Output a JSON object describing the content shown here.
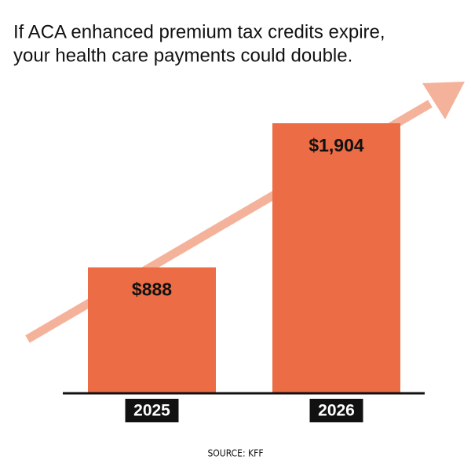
{
  "chart_data": {
    "type": "bar",
    "subtitle": [
      "If ACA enhanced premium tax credits expire,",
      "your health care payments could double."
    ],
    "categories": [
      "2025",
      "2026"
    ],
    "values": [
      888,
      1904
    ],
    "value_labels": [
      "$888",
      "$1,904"
    ],
    "color": "#eb6c45",
    "source": "SOURCE: KFF"
  }
}
